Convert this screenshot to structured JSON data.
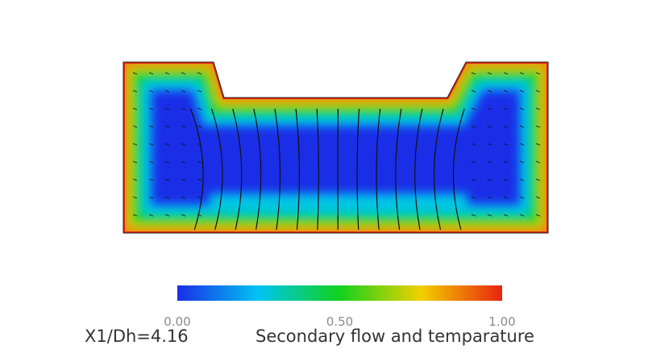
{
  "chart_data": {
    "type": "contour",
    "colorbar": {
      "clim": [
        0,
        1
      ],
      "ticks": [
        {
          "value": 0,
          "label": "0.00"
        },
        {
          "value": 0.5,
          "label": "0.50"
        },
        {
          "value": 1,
          "label": "1.00"
        }
      ],
      "colormap": [
        "#1a2ee8",
        "#00c4f2",
        "#10d21c",
        "#f2d000",
        "#e8240e"
      ]
    },
    "annotation": "X1/Dh=4.16",
    "title": "Secondary flow and temparature"
  }
}
